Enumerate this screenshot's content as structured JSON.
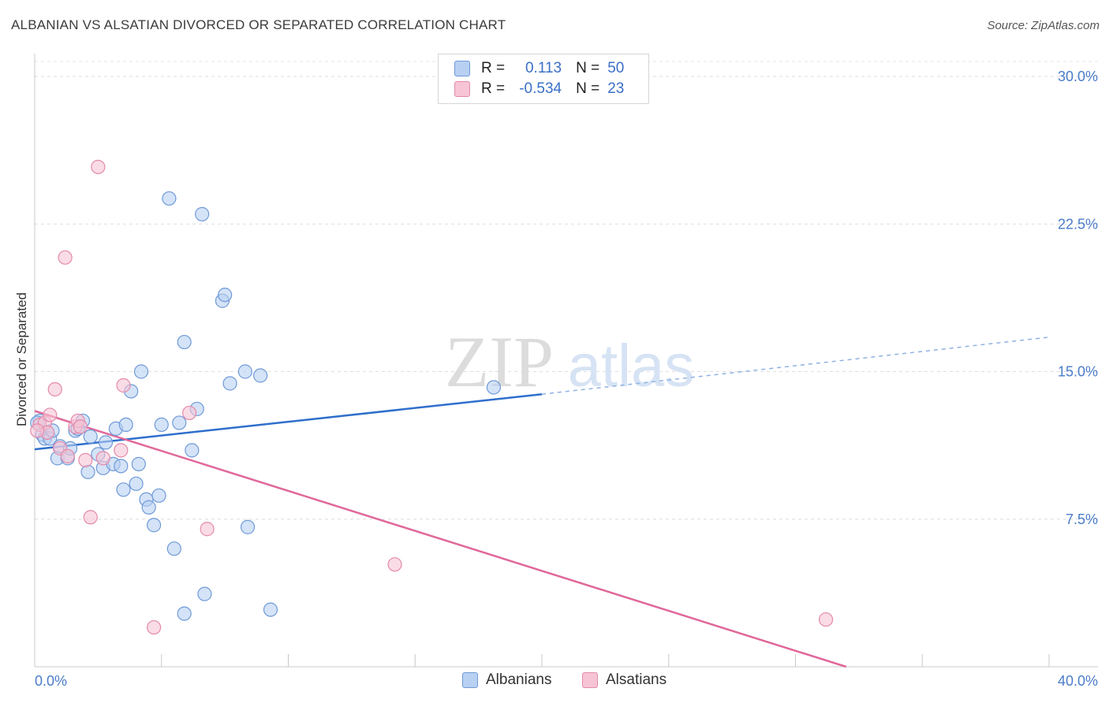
{
  "title": "ALBANIAN VS ALSATIAN DIVORCED OR SEPARATED CORRELATION CHART",
  "source": "Source: ZipAtlas.com",
  "watermark": {
    "zip": "ZIP",
    "atlas": "atlas"
  },
  "legend": {
    "r_label": "R =",
    "n_label": "N =",
    "rows": [
      {
        "r": "0.113",
        "n": "50"
      },
      {
        "r": "-0.534",
        "n": "23"
      }
    ]
  },
  "colors": {
    "albanians_fill": "#b8d0f2",
    "albanians_stroke": "#6f9ad8",
    "albanians_line": "#2f6fcc",
    "alsatians_fill": "#f7c4d6",
    "alsatians_stroke": "#e48aaa",
    "alsatians_line": "#e0679a",
    "tick_text": "#4a7cc9"
  },
  "chart_data": {
    "type": "scatter",
    "title": "ALBANIAN VS ALSATIAN DIVORCED OR SEPARATED CORRELATION CHART",
    "xlabel": "",
    "ylabel": "Divorced or Separated",
    "xlim": [
      0,
      40
    ],
    "ylim": [
      0,
      31
    ],
    "x_tick_labels": [
      {
        "v": 0,
        "label": "0.0%"
      },
      {
        "v": 40,
        "label": "40.0%"
      }
    ],
    "y_ticks": [
      {
        "v": 7.5,
        "label": "7.5%"
      },
      {
        "v": 15,
        "label": "15.0%"
      },
      {
        "v": 22.5,
        "label": "22.5%"
      },
      {
        "v": 30,
        "label": "30.0%"
      }
    ],
    "series": [
      {
        "name": "Albanians",
        "r": 0.113,
        "n": 50,
        "points": [
          [
            0.2,
            12.5
          ],
          [
            0.3,
            11.8
          ],
          [
            0.4,
            11.6
          ],
          [
            0.5,
            11.9
          ],
          [
            0.6,
            11.6
          ],
          [
            0.7,
            12.0
          ],
          [
            0.9,
            10.6
          ],
          [
            1.0,
            11.2
          ],
          [
            1.3,
            10.6
          ],
          [
            1.4,
            11.1
          ],
          [
            1.6,
            12.0
          ],
          [
            1.7,
            12.1
          ],
          [
            1.9,
            12.5
          ],
          [
            2.1,
            9.9
          ],
          [
            2.2,
            11.7
          ],
          [
            2.5,
            10.8
          ],
          [
            2.7,
            10.1
          ],
          [
            2.8,
            11.4
          ],
          [
            3.1,
            10.3
          ],
          [
            3.2,
            12.1
          ],
          [
            3.4,
            10.2
          ],
          [
            3.5,
            9.0
          ],
          [
            3.6,
            12.3
          ],
          [
            3.8,
            14.0
          ],
          [
            4.0,
            9.3
          ],
          [
            4.1,
            10.3
          ],
          [
            4.2,
            15.0
          ],
          [
            4.4,
            8.5
          ],
          [
            4.5,
            8.1
          ],
          [
            4.7,
            7.2
          ],
          [
            4.9,
            8.7
          ],
          [
            5.0,
            12.3
          ],
          [
            5.3,
            23.8
          ],
          [
            5.5,
            6.0
          ],
          [
            5.7,
            12.4
          ],
          [
            5.9,
            2.7
          ],
          [
            5.9,
            16.5
          ],
          [
            6.2,
            11.0
          ],
          [
            6.4,
            13.1
          ],
          [
            6.6,
            23.0
          ],
          [
            6.7,
            3.7
          ],
          [
            7.4,
            18.6
          ],
          [
            7.5,
            18.9
          ],
          [
            7.7,
            14.4
          ],
          [
            8.3,
            15.0
          ],
          [
            8.4,
            7.1
          ],
          [
            8.9,
            14.8
          ],
          [
            9.3,
            2.9
          ],
          [
            18.1,
            14.2
          ],
          [
            0.1,
            12.4
          ]
        ],
        "trend": {
          "x0": 0,
          "y0": 11.05,
          "x1": 20,
          "y1": 13.85,
          "dashed_to_x": 40,
          "dashed_to_y": 16.75
        }
      },
      {
        "name": "Alsatians",
        "r": -0.534,
        "n": 23,
        "points": [
          [
            0.2,
            12.3
          ],
          [
            0.4,
            12.4
          ],
          [
            0.5,
            11.9
          ],
          [
            0.6,
            12.8
          ],
          [
            0.8,
            14.1
          ],
          [
            1.0,
            11.1
          ],
          [
            1.2,
            20.8
          ],
          [
            1.3,
            10.7
          ],
          [
            1.6,
            12.2
          ],
          [
            1.7,
            12.5
          ],
          [
            1.8,
            12.2
          ],
          [
            2.0,
            10.5
          ],
          [
            2.2,
            7.6
          ],
          [
            2.5,
            25.4
          ],
          [
            2.7,
            10.6
          ],
          [
            3.4,
            11.0
          ],
          [
            3.5,
            14.3
          ],
          [
            4.7,
            2.0
          ],
          [
            6.1,
            12.9
          ],
          [
            6.8,
            7.0
          ],
          [
            14.2,
            5.2
          ],
          [
            31.2,
            2.4
          ],
          [
            0.1,
            12.0
          ]
        ],
        "trend": {
          "x0": 0,
          "y0": 13.0,
          "x1": 32,
          "y1": 0.0
        }
      }
    ]
  },
  "bottom_legend": [
    {
      "label": "Albanians"
    },
    {
      "label": "Alsatians"
    }
  ]
}
